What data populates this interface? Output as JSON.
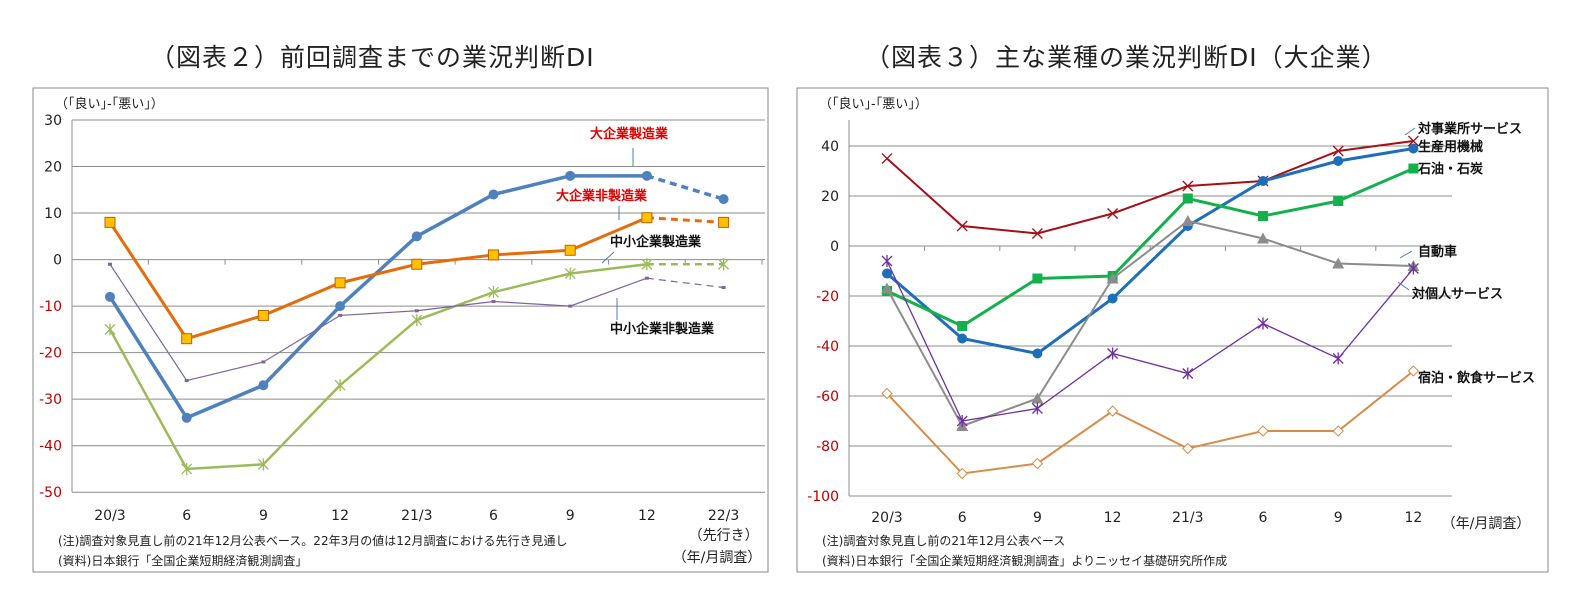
{
  "chart_data": [
    {
      "type": "line",
      "title": "（図表２）前回調査までの業況判断DI",
      "ylabel": "（｢良い｣-｢悪い｣）",
      "xlabel": "（年/月調査）",
      "categories": [
        "20/3",
        "6",
        "9",
        "12",
        "21/3",
        "6",
        "9",
        "12",
        "22/3"
      ],
      "category_note": "（先行き）",
      "ylim": [
        -50,
        30
      ],
      "yticks": [
        30,
        20,
        10,
        0,
        -10,
        -20,
        -30,
        -40,
        -50
      ],
      "grid": true,
      "notes": [
        "(注)調査対象見直し前の21年12月公表ベース。22年3月の値は12月調査における先行き見通し",
        "(資料)日本銀行「全国企業短期経済観測調査」"
      ],
      "series": [
        {
          "name": "大企業製造業",
          "color": "#4f81bd",
          "label_color": "#e00000",
          "marker": "circle",
          "values": [
            -8,
            -34,
            -27,
            -10,
            5,
            14,
            18,
            18,
            13
          ]
        },
        {
          "name": "大企業非製造業",
          "color": "#e46c0a",
          "label_color": "#e00000",
          "marker": "square",
          "values": [
            8,
            -17,
            -12,
            -5,
            -1,
            1,
            2,
            9,
            8
          ]
        },
        {
          "name": "中小企業製造業",
          "color": "#9bbb59",
          "label_color": "#111111",
          "marker": "star",
          "values": [
            -15,
            -45,
            -44,
            -27,
            -13,
            -7,
            -3,
            -1,
            -1
          ]
        },
        {
          "name": "中小企業非製造業",
          "color": "#7f64a2",
          "label_color": "#111111",
          "marker": "dash",
          "values": [
            -1,
            -26,
            -22,
            -12,
            -11,
            -9,
            -10,
            -4,
            -6
          ]
        }
      ]
    },
    {
      "type": "line",
      "title": "（図表３）主な業種の業況判断DI（大企業）",
      "ylabel": "（｢良い｣-｢悪い｣）",
      "xlabel": "（年/月調査）",
      "categories": [
        "20/3",
        "6",
        "9",
        "12",
        "21/3",
        "6",
        "9",
        "12"
      ],
      "ylim": [
        -100,
        50
      ],
      "yticks": [
        40,
        20,
        0,
        -20,
        -40,
        -60,
        -80,
        -100
      ],
      "grid": true,
      "notes": [
        "(注)調査対象見直し前の21年12月公表ベース",
        "(資料)日本銀行「全国企業短期経済観測調査」よりニッセイ基礎研究所作成"
      ],
      "series": [
        {
          "name": "対事業所サービス",
          "color": "#a50f15",
          "marker": "x",
          "values": [
            35,
            8,
            5,
            13,
            24,
            26,
            38,
            42
          ]
        },
        {
          "name": "生産用機械",
          "color": "#1f6fb8",
          "marker": "circle",
          "values": [
            -11,
            -37,
            -43,
            -21,
            8,
            26,
            34,
            39
          ]
        },
        {
          "name": "石油・石炭",
          "color": "#13b04b",
          "marker": "square",
          "values": [
            -18,
            -32,
            -13,
            -12,
            19,
            12,
            18,
            31
          ]
        },
        {
          "name": "自動車",
          "color": "#8c8c8c",
          "marker": "triangle",
          "values": [
            -17,
            -72,
            -61,
            -13,
            10,
            3,
            -7,
            -8
          ]
        },
        {
          "name": "対個人サービス",
          "color": "#7030a0",
          "marker": "star",
          "values": [
            -6,
            -70,
            -65,
            -43,
            -51,
            -31,
            -45,
            -9
          ]
        },
        {
          "name": "宿泊・飲食サービス",
          "color": "#d98c4a",
          "marker": "diamond",
          "values": [
            -59,
            -91,
            -87,
            -66,
            -81,
            -74,
            -74,
            -50
          ]
        }
      ]
    }
  ]
}
